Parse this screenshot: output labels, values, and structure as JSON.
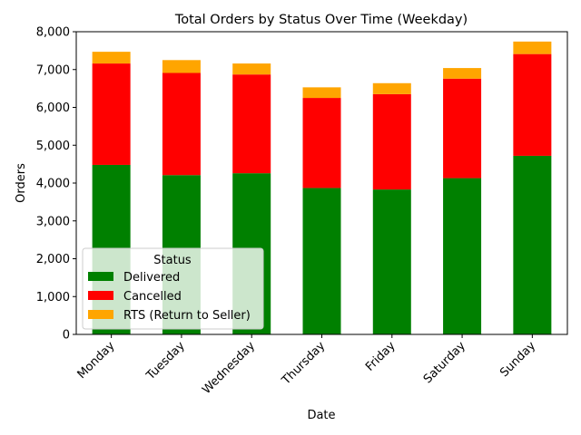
{
  "chart_data": {
    "type": "bar",
    "stacked": true,
    "title": "Total Orders by Status Over Time (Weekday)",
    "xlabel": "Date",
    "ylabel": "Orders",
    "categories": [
      "Monday",
      "Tuesday",
      "Wednesday",
      "Thursday",
      "Friday",
      "Saturday",
      "Sunday"
    ],
    "ylim": [
      0,
      8000
    ],
    "yticks": [
      0,
      1000,
      2000,
      3000,
      4000,
      5000,
      6000,
      7000,
      8000
    ],
    "ytick_labels": [
      "0",
      "1,000",
      "2,000",
      "3,000",
      "4,000",
      "5,000",
      "6,000",
      "7,000",
      "8,000"
    ],
    "series": [
      {
        "name": "Delivered",
        "color": "#008000",
        "values": [
          4480,
          4210,
          4260,
          3870,
          3830,
          4130,
          4720
        ]
      },
      {
        "name": "Cancelled",
        "color": "#ff0000",
        "values": [
          2680,
          2700,
          2610,
          2380,
          2520,
          2630,
          2690
        ]
      },
      {
        "name": "RTS (Return to Seller)",
        "color": "#ffa500",
        "values": [
          310,
          340,
          290,
          280,
          290,
          280,
          330
        ]
      }
    ],
    "legend": {
      "title": "Status",
      "placement": "lower-left"
    },
    "grid": false
  }
}
